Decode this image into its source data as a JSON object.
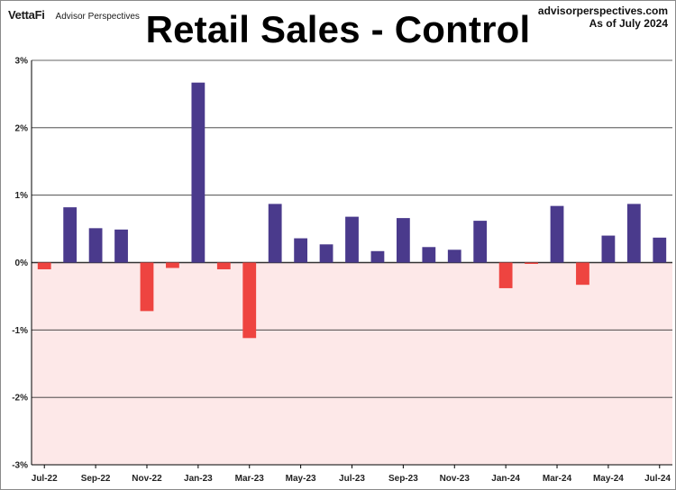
{
  "header": {
    "brand_logo": "VettaFi",
    "brand_name": "Advisor Perspectives",
    "title": "Retail Sales - Control",
    "source_site": "advisorperspectives.com",
    "source_date": "As of July 2024"
  },
  "colors": {
    "positive_bar": "#4a3a8c",
    "negative_bar": "#ee4440",
    "negative_zone": "#fde8e8",
    "gridline": "#333333"
  },
  "chart_data": {
    "type": "bar",
    "title": "Retail Sales - Control",
    "xlabel": "",
    "ylabel": "",
    "ylim": [
      -3,
      3
    ],
    "y_unit": "%",
    "y_ticks": [
      "3%",
      "2%",
      "1%",
      "0%",
      "-1%",
      "-2%",
      "-3%"
    ],
    "y_tick_values": [
      3,
      2,
      1,
      0,
      -1,
      -2,
      -3
    ],
    "x_tick_labels": [
      "Jul-22",
      "Sep-22",
      "Nov-22",
      "Jan-23",
      "Mar-23",
      "May-23",
      "Jul-23",
      "Sep-23",
      "Nov-23",
      "Jan-24",
      "Mar-24",
      "May-24",
      "Jul-24"
    ],
    "categories": [
      "Jul-22",
      "Aug-22",
      "Sep-22",
      "Oct-22",
      "Nov-22",
      "Dec-22",
      "Jan-23",
      "Feb-23",
      "Mar-23",
      "Apr-23",
      "May-23",
      "Jun-23",
      "Jul-23",
      "Aug-23",
      "Sep-23",
      "Oct-23",
      "Nov-23",
      "Dec-23",
      "Jan-24",
      "Feb-24",
      "Mar-24",
      "Apr-24",
      "May-24",
      "Jun-24",
      "Jul-24"
    ],
    "values": [
      -0.1,
      0.82,
      0.51,
      0.49,
      -0.72,
      -0.08,
      2.67,
      -0.1,
      -1.12,
      0.87,
      0.36,
      0.27,
      0.68,
      0.17,
      0.66,
      0.23,
      0.19,
      0.62,
      -0.38,
      -0.02,
      0.84,
      -0.33,
      0.4,
      0.87,
      0.37
    ],
    "grid": true,
    "legend": "none"
  }
}
